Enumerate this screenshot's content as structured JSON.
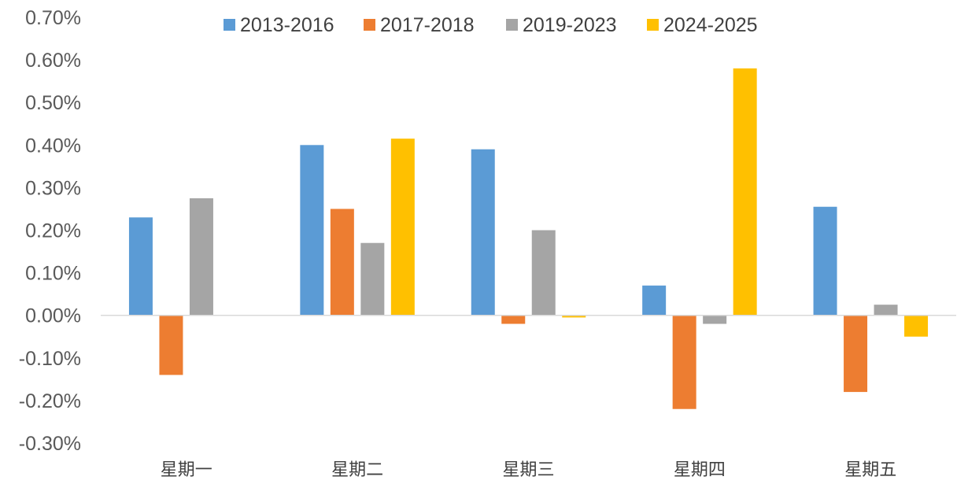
{
  "chart_data": {
    "type": "bar",
    "title": "",
    "xlabel": "",
    "ylabel": "",
    "categories": [
      "星期一",
      "星期二",
      "星期三",
      "星期四",
      "星期五"
    ],
    "series": [
      {
        "name": "2013-2016",
        "color": "#5B9BD5",
        "values": [
          0.23,
          0.4,
          0.39,
          0.07,
          0.255
        ]
      },
      {
        "name": "2017-2018",
        "color": "#ED7D31",
        "values": [
          -0.14,
          0.25,
          -0.02,
          -0.22,
          -0.18
        ]
      },
      {
        "name": "2019-2023",
        "color": "#A5A5A5",
        "values": [
          0.275,
          0.17,
          0.2,
          -0.02,
          0.025
        ]
      },
      {
        "name": "2024-2025",
        "color": "#FFC000",
        "values": [
          0.0,
          0.415,
          -0.005,
          0.58,
          -0.05
        ]
      }
    ],
    "ylim": [
      -0.3,
      0.7
    ],
    "yticks": [
      "0.70%",
      "0.60%",
      "0.50%",
      "0.40%",
      "0.30%",
      "0.20%",
      "0.10%",
      "0.00%",
      "-0.10%",
      "-0.20%",
      "-0.30%"
    ],
    "ytick_values": [
      0.7,
      0.6,
      0.5,
      0.4,
      0.3,
      0.2,
      0.1,
      0.0,
      -0.1,
      -0.2,
      -0.3
    ],
    "grid": false,
    "legend_position": "top",
    "axis_color": "#D9D9D9"
  }
}
